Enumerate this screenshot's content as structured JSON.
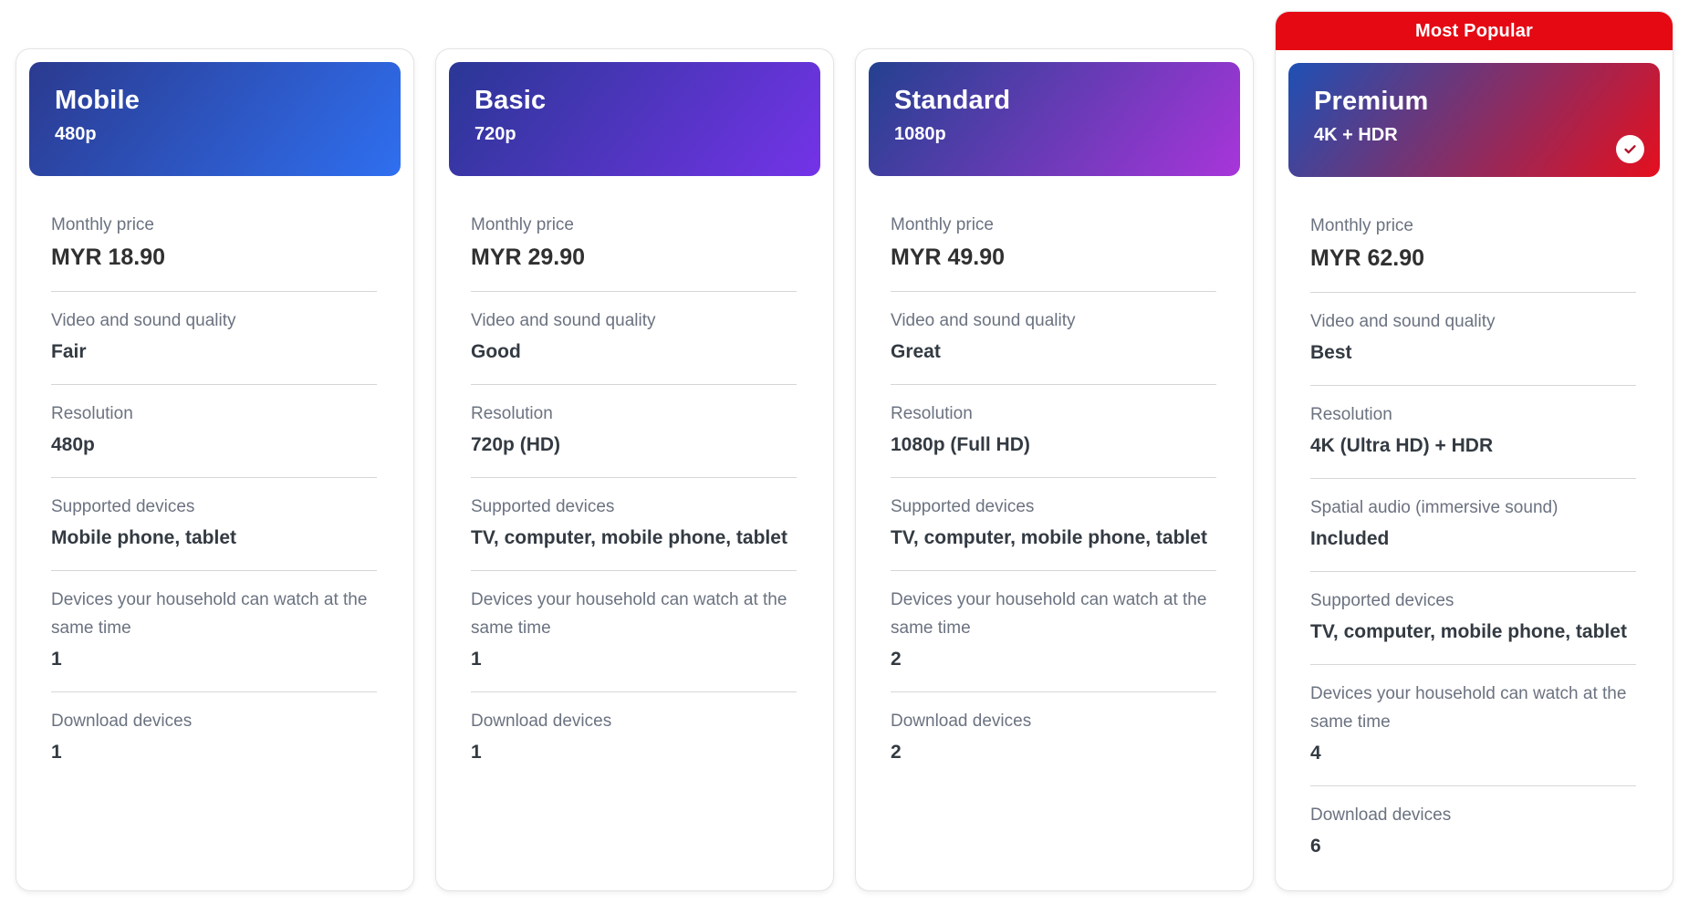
{
  "badge": {
    "label": "Most Popular",
    "color": "#e50914",
    "check_color": "#b3132b"
  },
  "feature_labels": {
    "monthly_price": "Monthly price",
    "quality": "Video and sound quality",
    "resolution": "Resolution",
    "spatial_audio": "Spatial audio (immersive sound)",
    "supported_devices": "Supported devices",
    "watch_same_time": "Devices your household can watch at the same time",
    "download_devices": "Download devices"
  },
  "plans": [
    {
      "name": "Mobile",
      "subtitle": "480p",
      "most_popular": false,
      "gradient": {
        "start": "#2b3a8f",
        "end": "#2f6ff0",
        "angle": "128deg"
      },
      "features": [
        {
          "label": "Monthly price",
          "value": "MYR 18.90"
        },
        {
          "label": "Video and sound quality",
          "value": "Fair"
        },
        {
          "label": "Resolution",
          "value": "480p"
        },
        {
          "label": "Supported devices",
          "value": "Mobile phone, tablet"
        },
        {
          "label": "Devices your household can watch at the same time",
          "value": "1"
        },
        {
          "label": "Download devices",
          "value": "1"
        }
      ]
    },
    {
      "name": "Basic",
      "subtitle": "720p",
      "most_popular": false,
      "gradient": {
        "start": "#2a3795",
        "end": "#7433e8",
        "angle": "128deg"
      },
      "features": [
        {
          "label": "Monthly price",
          "value": "MYR 29.90"
        },
        {
          "label": "Video and sound quality",
          "value": "Good"
        },
        {
          "label": "Resolution",
          "value": "720p (HD)"
        },
        {
          "label": "Supported devices",
          "value": "TV, computer, mobile phone, tablet"
        },
        {
          "label": "Devices your household can watch at the same time",
          "value": "1"
        },
        {
          "label": "Download devices",
          "value": "1"
        }
      ]
    },
    {
      "name": "Standard",
      "subtitle": "1080p",
      "most_popular": false,
      "gradient": {
        "start": "#24418f",
        "end": "#a835da",
        "angle": "128deg"
      },
      "features": [
        {
          "label": "Monthly price",
          "value": "MYR 49.90"
        },
        {
          "label": "Video and sound quality",
          "value": "Great"
        },
        {
          "label": "Resolution",
          "value": "1080p (Full HD)"
        },
        {
          "label": "Supported devices",
          "value": "TV, computer, mobile phone, tablet"
        },
        {
          "label": "Devices your household can watch at the same time",
          "value": "2"
        },
        {
          "label": "Download devices",
          "value": "2"
        }
      ]
    },
    {
      "name": "Premium",
      "subtitle": "4K + HDR",
      "most_popular": true,
      "gradient": {
        "start": "#1e50b5",
        "end": "#e50f1e",
        "angle": "128deg"
      },
      "features": [
        {
          "label": "Monthly price",
          "value": "MYR 62.90"
        },
        {
          "label": "Video and sound quality",
          "value": "Best"
        },
        {
          "label": "Resolution",
          "value": "4K (Ultra HD) + HDR"
        },
        {
          "label": "Spatial audio (immersive sound)",
          "value": "Included"
        },
        {
          "label": "Supported devices",
          "value": "TV, computer, mobile phone, tablet"
        },
        {
          "label": "Devices your household can watch at the same time",
          "value": "4"
        },
        {
          "label": "Download devices",
          "value": "6"
        }
      ]
    }
  ]
}
